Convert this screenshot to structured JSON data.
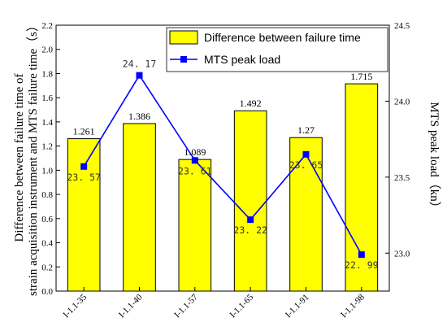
{
  "chart_data": {
    "type": "bar+line",
    "categories": [
      "I-1.1-35",
      "I-1.1-40",
      "I-1.1-57",
      "I-1.1-65",
      "I-1.1-91",
      "I-1.1-98"
    ],
    "series": [
      {
        "name": "Difference between failure time",
        "type": "bar",
        "axis": "left",
        "values": [
          1.261,
          1.386,
          1.089,
          1.492,
          1.27,
          1.715
        ],
        "labels": [
          "1.261",
          "1.386",
          "1.089",
          "1.492",
          "1.27",
          "1.715"
        ],
        "color": "#FFFF00",
        "edge_color": "#000000"
      },
      {
        "name": "MTS peak load",
        "type": "line",
        "axis": "right",
        "values": [
          23.57,
          24.17,
          23.61,
          23.22,
          23.65,
          22.99
        ],
        "labels": [
          "23. 57",
          "24. 17",
          "23. 61",
          "23. 22",
          "23. 65",
          "22. 99"
        ],
        "label_colors": [
          "#333333",
          "#3333CC",
          "#333333",
          "#333333",
          "#333333",
          "#333333"
        ],
        "color": "#0000FF",
        "marker": "square"
      }
    ],
    "ylabel_left": "Difference between failure time of\nstrain acquisition instrument and MTS failure time（s）",
    "ylabel_right": "MTS peak load（kn）",
    "ylim_left": [
      0.0,
      2.2
    ],
    "ylim_right": [
      22.75,
      24.5
    ],
    "yticks_left": [
      "0.0",
      "0.2",
      "0.4",
      "0.6",
      "0.8",
      "1.0",
      "1.2",
      "1.4",
      "1.6",
      "1.8",
      "2.0",
      "2.2"
    ],
    "yticks_right": [
      "23.0",
      "23.5",
      "24.0",
      "24.5"
    ],
    "yticks_right_values": [
      23.0,
      23.5,
      24.0,
      24.5
    ],
    "legend_position": "top-right",
    "grid": false
  }
}
